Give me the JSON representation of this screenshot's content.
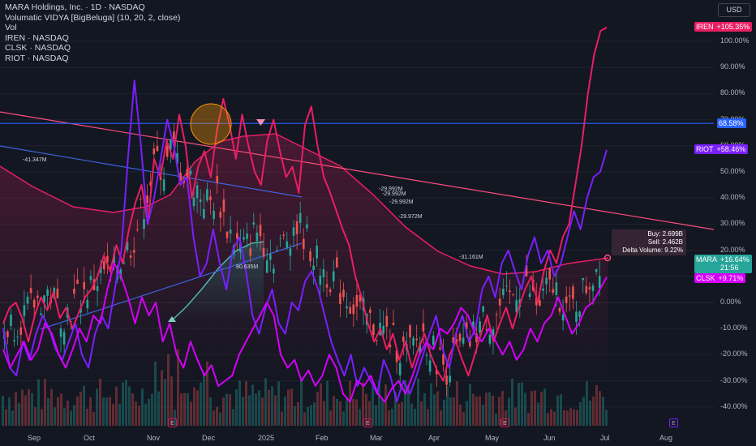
{
  "header": {
    "title": "MARA Holdings, Inc. · 1D · NASDAQ",
    "indicator": "Volumatic VIDYA [BigBeluga] (10, 20, 2, close)",
    "vol": "Vol",
    "comparisons": [
      "IREN · NASDAQ",
      "CLSK · NASDAQ",
      "RIOT · NASDAQ"
    ]
  },
  "currency_button": "USD",
  "tags": {
    "iren": {
      "name": "IREN",
      "value": "+105.35%",
      "color": "#e91e63"
    },
    "hline": {
      "value": "68.58%",
      "color": "#2962ff"
    },
    "riot": {
      "name": "RIOT",
      "value": "+58.46%",
      "color": "#7b1fff"
    },
    "mara": {
      "name": "MARA",
      "value": "+16.64%",
      "time": "21:56",
      "color": "#26a69a"
    },
    "clsk": {
      "name": "CLSK",
      "value": "+9.71%",
      "color": "#d500f9"
    }
  },
  "tooltip": {
    "buy": "Buy: 2.699B",
    "sell": "Sell: 2.462B",
    "delta": "Delta Volume: 9.22%"
  },
  "volume_labels": [
    "-41.347M",
    "80.635M",
    "-29.992M",
    "-29.992M",
    "-29.992M",
    "-29.972M",
    "-31.161M"
  ],
  "earnings_marker": "E",
  "chart_data": {
    "type": "line",
    "x_labels": [
      "Sep",
      "Oct",
      "Nov",
      "Dec",
      "2025",
      "Feb",
      "Mar",
      "Apr",
      "May",
      "Jun",
      "Jul",
      "Aug"
    ],
    "y_ticks": [
      "100.00%",
      "90.00%",
      "80.00%",
      "70.00%",
      "60.00%",
      "50.00%",
      "40.00%",
      "30.00%",
      "20.00%",
      "10.00%",
      "0.00%",
      "-10.00%",
      "-20.00%",
      "-30.00%",
      "-40.00%"
    ],
    "y_range": [
      -44,
      112
    ],
    "horizontal_line": 68.58,
    "series": [
      {
        "name": "IREN",
        "color": "#e91e63",
        "values": [
          -8,
          -2,
          0,
          -6,
          -15,
          -5,
          2,
          -3,
          4,
          -6,
          -2,
          -10,
          -4,
          2,
          5,
          10,
          18,
          12,
          22,
          15,
          28,
          38,
          45,
          30,
          55,
          48,
          62,
          55,
          72,
          60,
          40,
          52,
          58,
          48,
          66,
          78,
          68,
          55,
          72,
          60,
          50,
          45,
          62,
          70,
          58,
          48,
          52,
          42,
          68,
          75,
          60,
          48,
          42,
          35,
          28,
          22,
          10,
          2,
          -8,
          -15,
          -10,
          -18,
          -12,
          -22,
          -15,
          -25,
          -18,
          -12,
          -20,
          -26,
          -30,
          -20,
          -15,
          -22,
          -28,
          -20,
          -12,
          -5,
          -15,
          -8,
          -2,
          -10,
          -2,
          5,
          10,
          0,
          12,
          20,
          15,
          25,
          30,
          45,
          60,
          80,
          95,
          104,
          105.35
        ]
      },
      {
        "name": "RIOT",
        "color": "#7b1fff",
        "values": [
          -10,
          -25,
          -28,
          -15,
          -22,
          -12,
          -5,
          -10,
          -18,
          -22,
          -15,
          -8,
          -20,
          -25,
          -12,
          -5,
          -10,
          5,
          20,
          55,
          85,
          60,
          30,
          40,
          55,
          70,
          60,
          45,
          48,
          25,
          10,
          15,
          28,
          15,
          5,
          20,
          25,
          12,
          -5,
          -12,
          -2,
          5,
          -8,
          -12,
          0,
          -3,
          8,
          12,
          5,
          -5,
          -15,
          -22,
          -28,
          -20,
          -32,
          -25,
          -30,
          -35,
          -22,
          -28,
          -38,
          -30,
          -35,
          -28,
          -20,
          -12,
          -5,
          -18,
          -25,
          -12,
          -5,
          -15,
          -10,
          5,
          10,
          2,
          15,
          20,
          12,
          5,
          18,
          25,
          15,
          20,
          10,
          15,
          25,
          35,
          28,
          40,
          48,
          50,
          58.46
        ]
      },
      {
        "name": "CLSK",
        "color": "#d500f9",
        "values": [
          -18,
          -25,
          -20,
          -15,
          -22,
          -18,
          -8,
          -12,
          -20,
          -25,
          -18,
          -10,
          -15,
          -5,
          -8,
          5,
          15,
          10,
          2,
          -8,
          2,
          -5,
          0,
          -15,
          -8,
          -20,
          -25,
          -15,
          -22,
          -28,
          -24,
          -32,
          -30,
          -28,
          -20,
          -15,
          -10,
          -5,
          0,
          -5,
          -20,
          -25,
          -22,
          -30,
          -26,
          -32,
          -28,
          -20,
          -25,
          -35,
          -38,
          -30,
          -32,
          -28,
          -35,
          -38,
          -33,
          -30,
          -35,
          -28,
          -20,
          -15,
          -18,
          -10,
          -12,
          -8,
          -2,
          -5,
          -12,
          -15,
          -10,
          -15,
          -20,
          -15,
          -22,
          -18,
          -10,
          -15,
          -8,
          -5,
          2,
          -5,
          -12,
          -8,
          -2,
          0,
          5,
          9.71
        ]
      },
      {
        "name": "MARA",
        "color": "#26a69a",
        "values": [
          -10,
          -8,
          -6,
          -4,
          0,
          2,
          4,
          -2,
          -5,
          0,
          3,
          5,
          8,
          12,
          10,
          15,
          20,
          25,
          35,
          45,
          55,
          50,
          60,
          52,
          48,
          45,
          40,
          38,
          42,
          30,
          25,
          20,
          22,
          28,
          24,
          18,
          20,
          25,
          30,
          28,
          22,
          15,
          12,
          10,
          5,
          2,
          -2,
          -5,
          -8,
          -10,
          -12,
          -15,
          -18,
          -20,
          -15,
          -12,
          -18,
          -22,
          -25,
          -20,
          -18,
          -15,
          -10,
          -5,
          -8,
          -2,
          0,
          5,
          8,
          3,
          -2,
          4,
          6,
          2,
          -4,
          0,
          5,
          10,
          16.64
        ]
      }
    ]
  }
}
